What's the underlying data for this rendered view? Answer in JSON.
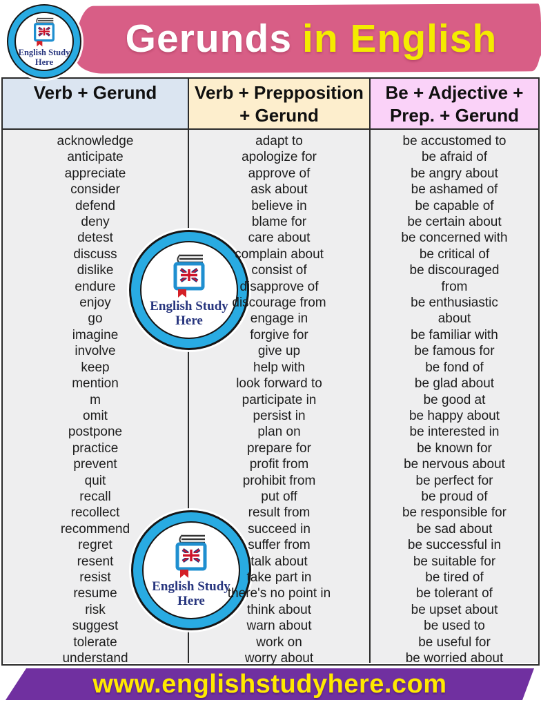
{
  "header": {
    "title_part1": "Gerunds",
    "title_part2": "in English"
  },
  "logo": {
    "line1": "English Study",
    "line2": "Here"
  },
  "columns": [
    {
      "header_lines": [
        "Verb + Gerund"
      ],
      "items": [
        "acknowledge",
        "anticipate",
        "appreciate",
        "consider",
        "defend",
        "deny",
        "detest",
        "discuss",
        "dislike",
        "endure",
        "enjoy",
        "go",
        "imagine",
        "involve",
        "keep",
        "mention",
        "m",
        "omit",
        "postpone",
        "practice",
        "prevent",
        "quit",
        "recall",
        "recollect",
        "recommend",
        "regret",
        "resent",
        "resist",
        "resume",
        "risk",
        "suggest",
        "tolerate",
        "understand"
      ]
    },
    {
      "header_lines": [
        "Verb + Prepposition",
        "+ Gerund"
      ],
      "items": [
        "adapt to",
        "apologize for",
        "approve of",
        "ask about",
        "believe in",
        "blame for",
        "care about",
        "complain about",
        "consist of",
        "disapprove of",
        "discourage from",
        "engage in",
        "forgive for",
        "give up",
        "help with",
        "look forward to",
        "participate in",
        "persist in",
        "plan on",
        "prepare for",
        "profit from",
        "prohibit from",
        "put off",
        "result from",
        "succeed in",
        "suffer from",
        "talk about",
        "take part in",
        "there's no point in",
        "think about",
        "warn about",
        "work on",
        "worry about"
      ]
    },
    {
      "header_lines": [
        "Be + Adjective +",
        "Prep. + Gerund"
      ],
      "items": [
        "be accustomed to",
        "be afraid of",
        "be angry about",
        "be ashamed of",
        "be capable of",
        "be certain about",
        "be concerned with",
        "be critical of",
        "be discouraged",
        "from",
        "be enthusiastic",
        "about",
        "be familiar with",
        "be famous for",
        "be fond of",
        "be glad about",
        "be good at",
        "be happy about",
        "be interested in",
        "be known for",
        "be nervous about",
        "be perfect for",
        "be proud of",
        "be responsible for",
        "be sad about",
        "be successful in",
        "be suitable for",
        "be tired of",
        "be tolerant of",
        "be upset about",
        "be used to",
        "be useful for",
        "be worried about"
      ]
    }
  ],
  "footer": {
    "url": "www.englishstudyhere.com"
  },
  "colors": {
    "brush_pink": "#d85e86",
    "title_white": "#ffffff",
    "title_yellow": "#f4ec00",
    "header_blue": "#dbe5f1",
    "header_cream": "#fdeecd",
    "header_pink": "#fad2f8",
    "body_gray": "#eeeeef",
    "footer_purple": "#7030a0",
    "footer_yellow": "#ffe900",
    "badge_cyan": "#29abe2",
    "logo_navy": "#27357e",
    "flag_red": "#cf142b"
  }
}
